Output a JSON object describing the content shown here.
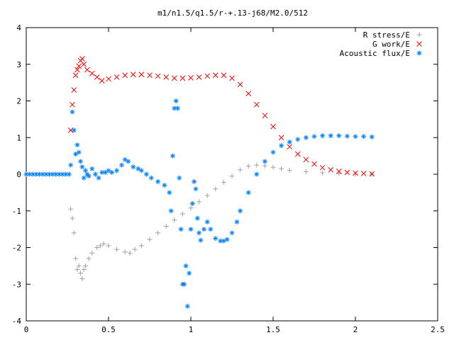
{
  "chart_data": {
    "type": "scatter",
    "title": "m1/n1.5/q1.5/r-+.13-j68/M2.0/512",
    "xlabel": "",
    "ylabel": "",
    "xlim": [
      0,
      2.5
    ],
    "ylim": [
      -4,
      4
    ],
    "x_ticks": [
      0,
      0.5,
      1,
      1.5,
      2,
      2.5
    ],
    "x_tick_labels": [
      "0",
      "0.5",
      "1",
      "1.5",
      "2",
      "2.5"
    ],
    "y_ticks": [
      -4,
      -3,
      -2,
      -1,
      0,
      1,
      2,
      3,
      4
    ],
    "y_tick_labels": [
      "-4",
      "-3",
      "-2",
      "-1",
      "0",
      "1",
      "2",
      "3",
      "4"
    ],
    "grid": false,
    "legend_position": "top-right",
    "series": [
      {
        "name": "R stress/E",
        "marker": "plus",
        "color": "#a0a0a0",
        "x": [
          0.27,
          0.28,
          0.29,
          0.3,
          0.31,
          0.32,
          0.33,
          0.34,
          0.35,
          0.36,
          0.38,
          0.4,
          0.43,
          0.45,
          0.47,
          0.5,
          0.55,
          0.6,
          0.63,
          0.66,
          0.7,
          0.75,
          0.8,
          0.85,
          0.9,
          0.95,
          1.0,
          1.05,
          1.1,
          1.15,
          1.2,
          1.25,
          1.3,
          1.35,
          1.4,
          1.45,
          1.5,
          1.55,
          1.6,
          1.7,
          1.8,
          1.9,
          2.0,
          2.1
        ],
        "y": [
          -0.95,
          -1.2,
          -1.6,
          -2.3,
          -2.6,
          -2.5,
          -2.7,
          -2.85,
          -2.6,
          -2.5,
          -2.3,
          -2.15,
          -2.0,
          -1.95,
          -1.9,
          -1.95,
          -2.05,
          -2.12,
          -2.15,
          -2.05,
          -1.95,
          -1.78,
          -1.6,
          -1.42,
          -1.25,
          -1.08,
          -0.92,
          -0.75,
          -0.58,
          -0.4,
          -0.22,
          -0.05,
          0.12,
          0.22,
          0.25,
          0.23,
          0.19,
          0.15,
          0.11,
          0.07,
          0.04,
          0.02,
          0.01,
          0.0
        ]
      },
      {
        "name": "G work/E",
        "marker": "cross",
        "color": "#ff0000",
        "x": [
          0.27,
          0.28,
          0.29,
          0.3,
          0.31,
          0.32,
          0.33,
          0.34,
          0.35,
          0.37,
          0.4,
          0.43,
          0.46,
          0.5,
          0.55,
          0.6,
          0.65,
          0.7,
          0.75,
          0.8,
          0.85,
          0.9,
          0.95,
          1.0,
          1.05,
          1.1,
          1.15,
          1.2,
          1.25,
          1.3,
          1.35,
          1.4,
          1.45,
          1.5,
          1.55,
          1.6,
          1.65,
          1.7,
          1.75,
          1.8,
          1.85,
          1.9,
          1.95,
          2.0,
          2.05,
          2.1
        ],
        "y": [
          1.2,
          1.9,
          2.3,
          2.7,
          2.85,
          2.95,
          3.1,
          3.15,
          3.0,
          2.85,
          2.75,
          2.65,
          2.55,
          2.6,
          2.65,
          2.7,
          2.72,
          2.72,
          2.7,
          2.68,
          2.65,
          2.62,
          2.62,
          2.63,
          2.65,
          2.68,
          2.7,
          2.7,
          2.62,
          2.45,
          2.2,
          1.9,
          1.6,
          1.3,
          1.0,
          0.75,
          0.55,
          0.4,
          0.28,
          0.18,
          0.12,
          0.08,
          0.05,
          0.03,
          0.02,
          0.01
        ]
      },
      {
        "name": "Acoustic flux/E",
        "marker": "star",
        "color": "#0080ff",
        "x": [
          0.0,
          0.02,
          0.04,
          0.06,
          0.08,
          0.1,
          0.12,
          0.14,
          0.16,
          0.18,
          0.2,
          0.22,
          0.24,
          0.26,
          0.27,
          0.28,
          0.29,
          0.3,
          0.31,
          0.32,
          0.33,
          0.34,
          0.35,
          0.36,
          0.37,
          0.38,
          0.4,
          0.42,
          0.44,
          0.46,
          0.48,
          0.5,
          0.52,
          0.55,
          0.58,
          0.6,
          0.62,
          0.65,
          0.68,
          0.7,
          0.73,
          0.76,
          0.8,
          0.84,
          0.87,
          0.88,
          0.89,
          0.9,
          0.91,
          0.92,
          0.93,
          0.94,
          0.95,
          0.96,
          0.97,
          0.98,
          0.99,
          1.0,
          1.01,
          1.02,
          1.03,
          1.04,
          1.05,
          1.06,
          1.08,
          1.1,
          1.12,
          1.15,
          1.18,
          1.2,
          1.22,
          1.25,
          1.28,
          1.3,
          1.35,
          1.4,
          1.45,
          1.5,
          1.55,
          1.6,
          1.65,
          1.7,
          1.75,
          1.8,
          1.85,
          1.9,
          1.95,
          2.0,
          2.05,
          2.1
        ],
        "y": [
          0.0,
          0.0,
          0.0,
          0.0,
          0.0,
          0.0,
          0.0,
          0.0,
          0.0,
          0.0,
          0.0,
          0.0,
          0.0,
          0.0,
          0.25,
          1.7,
          1.2,
          0.55,
          0.8,
          0.6,
          0.35,
          0.2,
          -0.1,
          0.1,
          0.0,
          -0.05,
          0.15,
          0.0,
          -0.1,
          0.05,
          0.05,
          0.1,
          0.05,
          0.1,
          0.25,
          0.4,
          0.35,
          0.2,
          0.15,
          0.1,
          0.0,
          -0.1,
          -0.2,
          -0.3,
          -0.5,
          -1.0,
          0.5,
          1.8,
          2.0,
          1.8,
          -0.1,
          -1.5,
          -3.0,
          -3.0,
          -2.5,
          -3.6,
          -2.7,
          -1.5,
          -0.8,
          -0.2,
          -0.4,
          -1.2,
          -1.6,
          -1.8,
          -1.5,
          -1.3,
          -1.5,
          -1.75,
          -1.82,
          -1.82,
          -1.78,
          -1.6,
          -1.3,
          -1.0,
          -0.5,
          0.0,
          0.35,
          0.6,
          0.78,
          0.88,
          0.95,
          1.0,
          1.03,
          1.05,
          1.05,
          1.05,
          1.04,
          1.03,
          1.03,
          1.02
        ]
      }
    ]
  }
}
